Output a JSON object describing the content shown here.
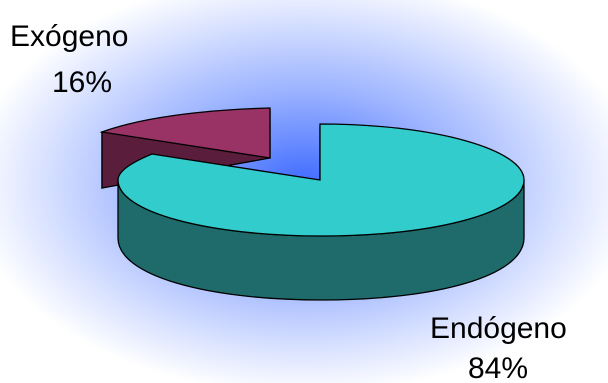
{
  "chart_data": {
    "type": "pie",
    "style": "3d-exploded",
    "title": "",
    "slices": [
      {
        "label": "Endógeno",
        "value": 84,
        "value_label": "84%",
        "color": "#33CCCC",
        "side_color": "#1F6B6B"
      },
      {
        "label": "Exógeno",
        "value": 16,
        "value_label": "16%",
        "color": "#993366",
        "side_color": "#5A1E3C"
      }
    ],
    "background": {
      "center": "#3F6BFF",
      "edge": "#FFFFFF"
    },
    "legend": "none"
  }
}
